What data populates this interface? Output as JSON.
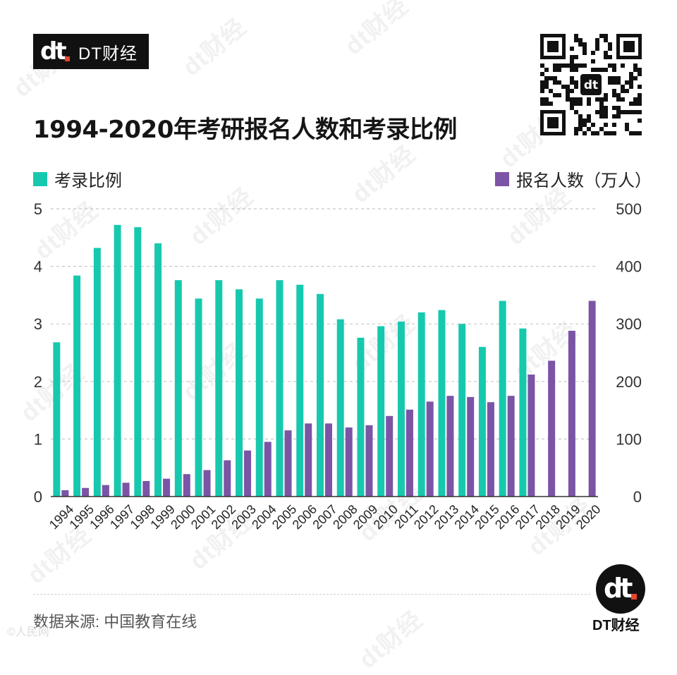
{
  "brand": {
    "logo_mark": "dt",
    "logo_text": "DT财经"
  },
  "qr_code": {
    "icon": "qr-code-icon",
    "center_mark": "dt"
  },
  "footer": {
    "source": "数据来源: 中国教育在线",
    "brand_mark": "dt",
    "brand_text": "DT财经",
    "credit": "©人民网"
  },
  "watermark_text": "dt财经",
  "colors": {
    "ratio": "#16c9ae",
    "applicants": "#7b54a6",
    "accent": "#e8442e",
    "grid": "#c7c7c7"
  },
  "chart_data": {
    "type": "bar",
    "title": "1994-2020年考研报名人数和考录比例",
    "categories": [
      "1994",
      "1995",
      "1996",
      "1997",
      "1998",
      "1999",
      "2000",
      "2001",
      "2002",
      "2003",
      "2004",
      "2005",
      "2006",
      "2007",
      "2008",
      "2009",
      "2010",
      "2011",
      "2012",
      "2013",
      "2014",
      "2015",
      "2016",
      "2017",
      "2018",
      "2019",
      "2020"
    ],
    "series": [
      {
        "name": "考录比例",
        "axis": "left",
        "values": [
          2.68,
          3.84,
          4.32,
          4.72,
          4.68,
          4.4,
          3.76,
          3.44,
          3.76,
          3.6,
          3.44,
          3.76,
          3.68,
          3.52,
          3.08,
          2.76,
          2.96,
          3.04,
          3.2,
          3.24,
          3.0,
          2.6,
          3.4,
          2.92,
          null,
          null,
          null
        ]
      },
      {
        "name": "报名人数(万人)",
        "axis": "right",
        "values": [
          11,
          15,
          20,
          24,
          27,
          31,
          39,
          46,
          63,
          80,
          95,
          115,
          127,
          127,
          120,
          124,
          140,
          151,
          165,
          175,
          173,
          164,
          175,
          212,
          236,
          288,
          340
        ]
      }
    ],
    "y_left": {
      "min": 0,
      "max": 5,
      "ticks": [
        0,
        1,
        2,
        3,
        4,
        5
      ]
    },
    "y_right": {
      "min": 0,
      "max": 500,
      "ticks": [
        0,
        100,
        200,
        300,
        400,
        500
      ]
    },
    "legend": {
      "left_label": "考录比例",
      "right_label": "报名人数（万人）"
    },
    "grid": true
  }
}
